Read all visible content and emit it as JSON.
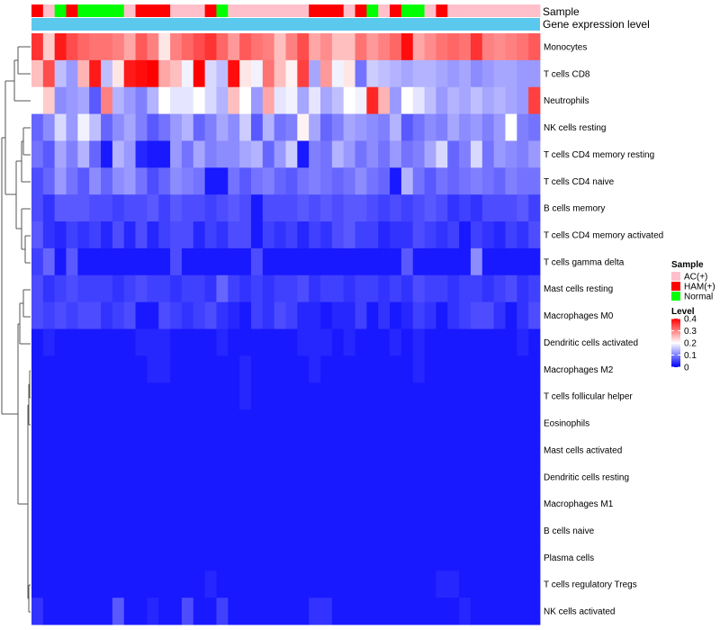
{
  "chart_data": {
    "type": "heatmap",
    "title": "",
    "annotation_tracks": [
      "Sample",
      "Gene expression level"
    ],
    "sample_palette": {
      "AC(+)": "#FFC0CB",
      "HAM(+)": "#FF0000",
      "Normal": "#00FF00"
    },
    "samples": [
      "HAM(+)",
      "AC(+)",
      "Normal",
      "HAM(+)",
      "Normal",
      "Normal",
      "Normal",
      "Normal",
      "AC(+)",
      "HAM(+)",
      "HAM(+)",
      "HAM(+)",
      "AC(+)",
      "AC(+)",
      "AC(+)",
      "HAM(+)",
      "Normal",
      "AC(+)",
      "AC(+)",
      "AC(+)",
      "AC(+)",
      "AC(+)",
      "AC(+)",
      "AC(+)",
      "HAM(+)",
      "HAM(+)",
      "HAM(+)",
      "AC(+)",
      "HAM(+)",
      "Normal",
      "AC(+)",
      "HAM(+)",
      "Normal",
      "Normal",
      "AC(+)",
      "HAM(+)",
      "AC(+)",
      "AC(+)",
      "AC(+)",
      "AC(+)",
      "AC(+)",
      "AC(+)",
      "AC(+)",
      "AC(+)"
    ],
    "gene_expression_color": "#5BC8EE",
    "rows": [
      "Monocytes",
      "T cells CD8",
      "Neutrophils",
      "NK cells resting",
      "T cells CD4 memory resting",
      "T cells CD4 naive",
      "B cells memory",
      "T cells CD4 memory activated",
      "T cells gamma delta",
      "Mast cells resting",
      "Macrophages M0",
      "Dendritic cells activated",
      "Macrophages M2",
      "T cells follicular helper",
      "Eosinophils",
      "Mast cells activated",
      "Dendritic cells resting",
      "Macrophages M1",
      "B cells naive",
      "Plasma cells",
      "T cells regulatory  Tregs",
      "NK cells activated"
    ],
    "values": [
      [
        0.36,
        0.24,
        0.38,
        0.34,
        0.32,
        0.31,
        0.31,
        0.3,
        0.27,
        0.33,
        0.3,
        0.22,
        0.3,
        0.32,
        0.34,
        0.36,
        0.32,
        0.28,
        0.33,
        0.31,
        0.3,
        0.25,
        0.3,
        0.34,
        0.27,
        0.29,
        0.25,
        0.25,
        0.31,
        0.28,
        0.3,
        0.32,
        0.39,
        0.27,
        0.29,
        0.31,
        0.32,
        0.31,
        0.36,
        0.3,
        0.29,
        0.3,
        0.31,
        0.33
      ],
      [
        0.25,
        0.34,
        0.15,
        0.12,
        0.26,
        0.38,
        0.15,
        0.22,
        0.38,
        0.39,
        0.4,
        0.27,
        0.25,
        0.19,
        0.4,
        0.17,
        0.15,
        0.39,
        0.22,
        0.19,
        0.31,
        0.25,
        0.21,
        0.35,
        0.13,
        0.28,
        0.19,
        0.22,
        0.09,
        0.16,
        0.15,
        0.14,
        0.13,
        0.14,
        0.14,
        0.13,
        0.12,
        0.13,
        0.11,
        0.12,
        0.13,
        0.13,
        0.12,
        0.12
      ],
      [
        0.2,
        0.24,
        0.11,
        0.12,
        0.13,
        0.07,
        0.3,
        0.14,
        0.12,
        0.1,
        0.14,
        0.2,
        0.18,
        0.18,
        0.2,
        0.17,
        0.14,
        0.25,
        0.2,
        0.12,
        0.27,
        0.18,
        0.19,
        0.13,
        0.18,
        0.13,
        0.15,
        0.2,
        0.19,
        0.37,
        0.26,
        0.12,
        0.2,
        0.18,
        0.15,
        0.12,
        0.14,
        0.13,
        0.15,
        0.13,
        0.14,
        0.13,
        0.12,
        0.35
      ],
      [
        0.08,
        0.11,
        0.17,
        0.12,
        0.19,
        0.15,
        0.08,
        0.11,
        0.13,
        0.1,
        0.07,
        0.09,
        0.12,
        0.14,
        0.08,
        0.1,
        0.13,
        0.11,
        0.16,
        0.07,
        0.14,
        0.09,
        0.1,
        0.21,
        0.13,
        0.08,
        0.1,
        0.13,
        0.12,
        0.11,
        0.1,
        0.14,
        0.07,
        0.09,
        0.11,
        0.1,
        0.13,
        0.11,
        0.12,
        0.1,
        0.12,
        0.2,
        0.1,
        0.09
      ],
      [
        0.09,
        0.07,
        0.13,
        0.1,
        0.14,
        0.08,
        0.02,
        0.14,
        0.12,
        0.03,
        0.02,
        0.02,
        0.12,
        0.09,
        0.13,
        0.1,
        0.11,
        0.11,
        0.13,
        0.14,
        0.08,
        0.12,
        0.16,
        0.02,
        0.1,
        0.09,
        0.14,
        0.12,
        0.09,
        0.11,
        0.09,
        0.12,
        0.09,
        0.1,
        0.13,
        0.17,
        0.08,
        0.1,
        0.17,
        0.09,
        0.12,
        0.11,
        0.1,
        0.12
      ],
      [
        0.06,
        0.08,
        0.12,
        0.09,
        0.07,
        0.11,
        0.08,
        0.11,
        0.12,
        0.09,
        0.06,
        0.08,
        0.11,
        0.1,
        0.09,
        0.02,
        0.02,
        0.09,
        0.07,
        0.09,
        0.1,
        0.08,
        0.07,
        0.09,
        0.1,
        0.09,
        0.08,
        0.09,
        0.11,
        0.09,
        0.08,
        0.02,
        0.14,
        0.09,
        0.07,
        0.09,
        0.08,
        0.09,
        0.1,
        0.09,
        0.08,
        0.1,
        0.09,
        0.09
      ],
      [
        0.06,
        0.04,
        0.07,
        0.07,
        0.07,
        0.06,
        0.06,
        0.05,
        0.06,
        0.06,
        0.07,
        0.05,
        0.07,
        0.06,
        0.06,
        0.05,
        0.06,
        0.07,
        0.06,
        0.02,
        0.06,
        0.06,
        0.06,
        0.07,
        0.06,
        0.07,
        0.06,
        0.07,
        0.07,
        0.06,
        0.05,
        0.06,
        0.05,
        0.06,
        0.07,
        0.06,
        0.04,
        0.05,
        0.04,
        0.06,
        0.06,
        0.06,
        0.07,
        0.05
      ],
      [
        0.07,
        0.04,
        0.03,
        0.05,
        0.04,
        0.05,
        0.03,
        0.06,
        0.03,
        0.06,
        0.03,
        0.05,
        0.06,
        0.06,
        0.03,
        0.05,
        0.04,
        0.06,
        0.06,
        0.02,
        0.05,
        0.04,
        0.05,
        0.03,
        0.05,
        0.04,
        0.06,
        0.07,
        0.05,
        0.05,
        0.03,
        0.04,
        0.04,
        0.06,
        0.05,
        0.04,
        0.05,
        0.02,
        0.05,
        0.04,
        0.03,
        0.05,
        0.04,
        0.06
      ],
      [
        0.05,
        0.08,
        0.02,
        0.07,
        0.02,
        0.02,
        0.02,
        0.02,
        0.02,
        0.02,
        0.02,
        0.02,
        0.06,
        0.02,
        0.02,
        0.02,
        0.02,
        0.02,
        0.02,
        0.06,
        0.02,
        0.02,
        0.02,
        0.02,
        0.02,
        0.02,
        0.02,
        0.02,
        0.02,
        0.02,
        0.02,
        0.02,
        0.07,
        0.02,
        0.02,
        0.02,
        0.02,
        0.02,
        0.11,
        0.02,
        0.02,
        0.02,
        0.02,
        0.02
      ],
      [
        0.06,
        0.04,
        0.05,
        0.06,
        0.05,
        0.05,
        0.05,
        0.04,
        0.05,
        0.06,
        0.05,
        0.05,
        0.04,
        0.05,
        0.05,
        0.04,
        0.08,
        0.05,
        0.04,
        0.05,
        0.04,
        0.05,
        0.05,
        0.06,
        0.04,
        0.05,
        0.05,
        0.04,
        0.05,
        0.05,
        0.04,
        0.05,
        0.04,
        0.06,
        0.05,
        0.05,
        0.04,
        0.05,
        0.05,
        0.04,
        0.05,
        0.06,
        0.04,
        0.05
      ],
      [
        0.06,
        0.05,
        0.06,
        0.05,
        0.06,
        0.06,
        0.04,
        0.05,
        0.06,
        0.02,
        0.02,
        0.06,
        0.05,
        0.04,
        0.05,
        0.06,
        0.04,
        0.03,
        0.02,
        0.05,
        0.04,
        0.06,
        0.05,
        0.03,
        0.03,
        0.02,
        0.03,
        0.03,
        0.05,
        0.02,
        0.04,
        0.02,
        0.03,
        0.05,
        0.04,
        0.02,
        0.04,
        0.05,
        0.06,
        0.06,
        0.04,
        0.02,
        0.04,
        0.06
      ],
      [
        0.02,
        0.03,
        0.02,
        0.02,
        0.02,
        0.02,
        0.02,
        0.02,
        0.02,
        0.03,
        0.03,
        0.03,
        0.02,
        0.02,
        0.02,
        0.02,
        0.03,
        0.02,
        0.02,
        0.02,
        0.02,
        0.02,
        0.02,
        0.03,
        0.03,
        0.03,
        0.02,
        0.03,
        0.02,
        0.02,
        0.02,
        0.03,
        0.02,
        0.03,
        0.02,
        0.02,
        0.02,
        0.02,
        0.02,
        0.02,
        0.02,
        0.02,
        0.03,
        0.02
      ],
      [
        0.02,
        0.02,
        0.02,
        0.02,
        0.02,
        0.02,
        0.02,
        0.02,
        0.02,
        0.02,
        0.03,
        0.03,
        0.02,
        0.02,
        0.02,
        0.02,
        0.02,
        0.02,
        0.03,
        0.02,
        0.02,
        0.02,
        0.02,
        0.02,
        0.03,
        0.02,
        0.02,
        0.02,
        0.02,
        0.02,
        0.02,
        0.02,
        0.02,
        0.03,
        0.02,
        0.02,
        0.02,
        0.02,
        0.02,
        0.02,
        0.02,
        0.02,
        0.02,
        0.02
      ],
      [
        0.02,
        0.02,
        0.02,
        0.02,
        0.02,
        0.02,
        0.02,
        0.02,
        0.02,
        0.02,
        0.02,
        0.02,
        0.02,
        0.02,
        0.02,
        0.02,
        0.02,
        0.02,
        0.03,
        0.02,
        0.02,
        0.02,
        0.02,
        0.02,
        0.02,
        0.02,
        0.02,
        0.02,
        0.02,
        0.02,
        0.02,
        0.02,
        0.02,
        0.02,
        0.02,
        0.02,
        0.02,
        0.02,
        0.02,
        0.02,
        0.02,
        0.02,
        0.02,
        0.02
      ],
      [
        0.02,
        0.02,
        0.02,
        0.02,
        0.02,
        0.02,
        0.02,
        0.02,
        0.02,
        0.02,
        0.02,
        0.02,
        0.02,
        0.02,
        0.02,
        0.02,
        0.02,
        0.02,
        0.02,
        0.02,
        0.02,
        0.02,
        0.02,
        0.02,
        0.02,
        0.02,
        0.02,
        0.02,
        0.02,
        0.02,
        0.02,
        0.02,
        0.02,
        0.02,
        0.02,
        0.02,
        0.02,
        0.02,
        0.02,
        0.02,
        0.02,
        0.02,
        0.02,
        0.02
      ],
      [
        0.02,
        0.02,
        0.02,
        0.02,
        0.02,
        0.02,
        0.02,
        0.02,
        0.02,
        0.02,
        0.02,
        0.02,
        0.02,
        0.02,
        0.02,
        0.02,
        0.02,
        0.02,
        0.02,
        0.02,
        0.02,
        0.02,
        0.02,
        0.02,
        0.02,
        0.02,
        0.02,
        0.02,
        0.02,
        0.02,
        0.02,
        0.02,
        0.02,
        0.02,
        0.02,
        0.02,
        0.02,
        0.02,
        0.02,
        0.02,
        0.02,
        0.02,
        0.02,
        0.02
      ],
      [
        0.02,
        0.02,
        0.02,
        0.02,
        0.02,
        0.02,
        0.02,
        0.02,
        0.02,
        0.02,
        0.02,
        0.02,
        0.02,
        0.02,
        0.02,
        0.02,
        0.02,
        0.02,
        0.02,
        0.02,
        0.02,
        0.02,
        0.02,
        0.02,
        0.02,
        0.02,
        0.02,
        0.02,
        0.02,
        0.02,
        0.02,
        0.02,
        0.02,
        0.02,
        0.02,
        0.02,
        0.02,
        0.02,
        0.02,
        0.02,
        0.02,
        0.02,
        0.02,
        0.02
      ],
      [
        0.02,
        0.02,
        0.02,
        0.02,
        0.02,
        0.02,
        0.02,
        0.02,
        0.02,
        0.02,
        0.02,
        0.02,
        0.02,
        0.02,
        0.02,
        0.02,
        0.02,
        0.02,
        0.02,
        0.02,
        0.02,
        0.02,
        0.02,
        0.02,
        0.02,
        0.02,
        0.02,
        0.02,
        0.02,
        0.02,
        0.02,
        0.02,
        0.02,
        0.02,
        0.02,
        0.02,
        0.02,
        0.02,
        0.02,
        0.02,
        0.02,
        0.02,
        0.02,
        0.02
      ],
      [
        0.02,
        0.02,
        0.02,
        0.02,
        0.02,
        0.02,
        0.02,
        0.02,
        0.02,
        0.02,
        0.02,
        0.02,
        0.02,
        0.02,
        0.02,
        0.02,
        0.02,
        0.02,
        0.02,
        0.02,
        0.02,
        0.02,
        0.02,
        0.02,
        0.02,
        0.02,
        0.02,
        0.02,
        0.02,
        0.02,
        0.02,
        0.02,
        0.02,
        0.02,
        0.02,
        0.02,
        0.02,
        0.02,
        0.02,
        0.02,
        0.02,
        0.02,
        0.02,
        0.02
      ],
      [
        0.02,
        0.02,
        0.02,
        0.02,
        0.02,
        0.02,
        0.02,
        0.02,
        0.02,
        0.02,
        0.02,
        0.02,
        0.02,
        0.02,
        0.02,
        0.02,
        0.02,
        0.02,
        0.02,
        0.02,
        0.02,
        0.02,
        0.02,
        0.02,
        0.02,
        0.02,
        0.02,
        0.02,
        0.02,
        0.02,
        0.02,
        0.02,
        0.02,
        0.02,
        0.02,
        0.02,
        0.02,
        0.02,
        0.02,
        0.02,
        0.02,
        0.02,
        0.02,
        0.02
      ],
      [
        0.02,
        0.02,
        0.02,
        0.02,
        0.02,
        0.02,
        0.02,
        0.02,
        0.02,
        0.02,
        0.02,
        0.02,
        0.02,
        0.02,
        0.02,
        0.03,
        0.02,
        0.02,
        0.02,
        0.02,
        0.02,
        0.02,
        0.02,
        0.02,
        0.02,
        0.02,
        0.02,
        0.02,
        0.02,
        0.02,
        0.02,
        0.02,
        0.02,
        0.02,
        0.02,
        0.03,
        0.03,
        0.02,
        0.02,
        0.02,
        0.02,
        0.02,
        0.02,
        0.02
      ],
      [
        0.04,
        0.02,
        0.02,
        0.02,
        0.02,
        0.02,
        0.02,
        0.07,
        0.02,
        0.02,
        0.03,
        0.02,
        0.02,
        0.06,
        0.02,
        0.02,
        0.05,
        0.02,
        0.02,
        0.02,
        0.02,
        0.02,
        0.02,
        0.02,
        0.04,
        0.04,
        0.02,
        0.02,
        0.02,
        0.02,
        0.02,
        0.02,
        0.02,
        0.02,
        0.02,
        0.02,
        0.02,
        0.03,
        0.02,
        0.02,
        0.02,
        0.02,
        0.02,
        0.02
      ]
    ],
    "color_scale": {
      "name": "Level",
      "min": 0,
      "max": 0.4,
      "low": "#0000FF",
      "mid": "#FFFFFF",
      "midpoint": 0.2,
      "high": "#FF0000"
    },
    "legend": {
      "position": "right",
      "sample": {
        "title": "Sample",
        "labels": [
          "AC(+)",
          "HAM(+)",
          "Normal"
        ]
      },
      "level": {
        "title": "Level",
        "ticks": [
          "0.4",
          "0.3",
          "0.2",
          "0.1",
          "0"
        ],
        "tick_values": [
          0.4,
          0.3,
          0.2,
          0.1,
          0
        ]
      }
    }
  }
}
